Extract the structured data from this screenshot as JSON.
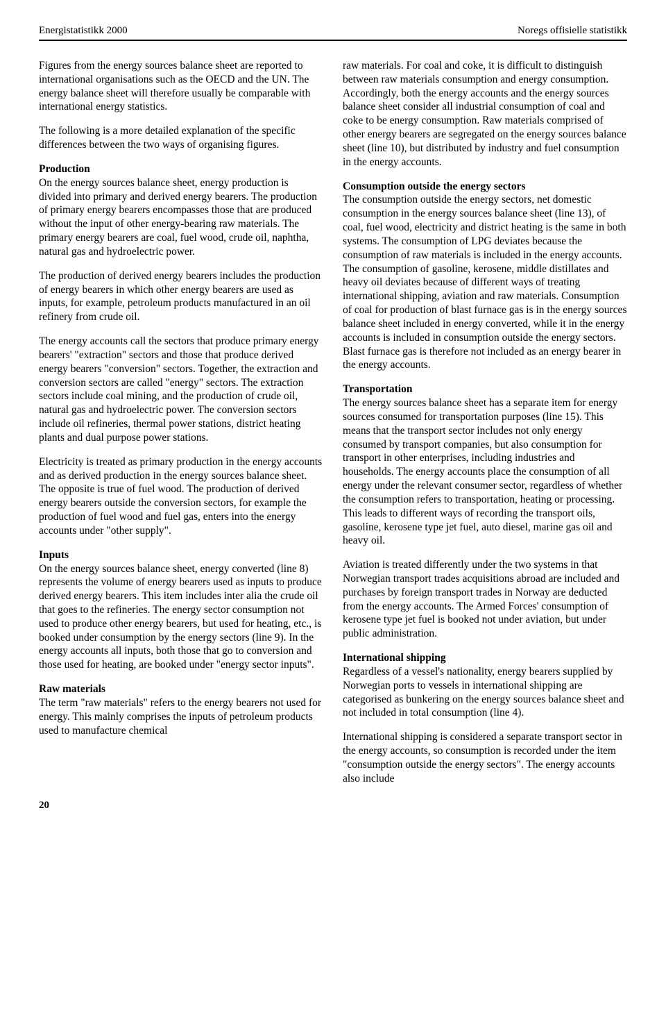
{
  "header": {
    "left": "Energistatistikk 2000",
    "right": "Noregs offisielle statistikk"
  },
  "left_col": {
    "p1": "Figures from the energy sources balance sheet are reported to international organisations such as the OECD and the UN. The energy balance sheet will therefore usually be comparable with international energy statistics.",
    "p2": "The following is a more detailed explanation of the specific differences between the two ways of organising figures.",
    "h_prod": "Production",
    "p3": "On the energy sources balance sheet, energy production is divided into primary and derived energy bearers. The production of primary energy bearers encompasses those that are produced without the input of other energy-bearing raw materials. The primary energy bearers are coal, fuel wood, crude oil, naphtha, natural gas and hydroelectric power.",
    "p4": "The production of derived energy bearers includes the production of energy bearers in which other energy bearers are used as inputs, for example, petroleum products manufactured in an oil refinery from crude oil.",
    "p5": "The energy accounts call the sectors that produce primary energy bearers' \"extraction\" sectors and those that produce derived energy bearers \"conversion\" sectors. Together, the extraction and conversion sectors are called \"energy\" sectors. The extraction sectors include coal mining, and the production of crude oil, natural gas and hydroelectric power. The conversion sectors include oil refineries, thermal power stations, district heating plants and dual purpose power stations.",
    "p6": "Electricity is treated as primary production in the energy accounts and as derived production in the energy sources balance sheet. The opposite is true of fuel wood. The production of derived energy bearers outside the conversion sectors, for example the production of fuel wood and fuel gas, enters into the energy accounts under \"other supply\".",
    "h_inputs": "Inputs",
    "p7": "On the energy sources balance sheet, energy converted (line 8) represents the volume of energy bearers used as inputs to produce derived energy bearers. This item includes inter alia the crude oil that goes to the refineries. The energy sector consumption not used to produce other energy bearers, but used for heating, etc., is booked under consumption by the energy sectors (line 9). In the energy accounts all inputs, both those that go to conversion and those used for heating, are booked under \"energy sector inputs\".",
    "h_raw": "Raw materials",
    "p8": "The term \"raw materials\" refers to the energy bearers not used for energy. This mainly comprises the inputs of petroleum products used to manufacture chemical"
  },
  "right_col": {
    "p1": "raw materials. For coal and coke, it is difficult to distinguish between raw materials consumption and energy consumption. Accordingly, both the energy accounts and the energy sources balance sheet consider all industrial consumption of coal and coke to be energy consumption. Raw materials comprised of other energy bearers are segregated on the energy sources balance sheet (line 10), but distributed by industry and fuel consumption in the energy accounts.",
    "h_cons": "Consumption outside the energy sectors",
    "p2": "The consumption outside the energy sectors, net domestic consumption in the energy sources balance sheet (line 13), of coal, fuel wood, electricity and district heating is the same in both systems. The consumption of LPG deviates because the consumption of raw materials is included in the energy accounts. The consumption of gasoline, kerosene, middle distillates and heavy oil deviates because of different ways of treating international shipping, aviation and raw materials. Consumption of coal for production of blast furnace gas is in the energy sources balance sheet included in energy converted, while it in the energy accounts is included in consumption outside the energy sectors. Blast furnace gas is therefore not included as an energy bearer in the energy accounts.",
    "h_trans": "Transportation",
    "p3": "The energy sources balance sheet has a separate item for energy sources consumed for transportation purposes (line 15). This means that the transport sector includes not only energy consumed by transport companies, but also consumption for transport in other enterprises, including industries and households. The energy accounts place the consumption of all energy under the relevant consumer sector, regardless of whether the consumption refers to transportation, heating or processing. This leads to different ways of recording the transport oils, gasoline, kerosene type jet fuel, auto diesel, marine gas oil and heavy oil.",
    "p4": "Aviation is treated differently under the two systems in that Norwegian transport trades acquisitions abroad are included and purchases by foreign transport trades in Norway are deducted from the energy accounts. The Armed Forces' consumption of kerosene type jet fuel is booked not under aviation, but under public administration.",
    "h_ship": "International shipping",
    "p5": "Regardless of a vessel's nationality, energy bearers supplied by Norwegian ports to vessels in international shipping are categorised as bunkering on the energy sources balance sheet and not included in total consumption (line 4).",
    "p6": "International shipping is considered a separate transport sector in the energy accounts, so consumption is recorded under the item \"consumption outside the energy sectors\". The energy accounts also include"
  },
  "footer": {
    "page_number": "20"
  }
}
